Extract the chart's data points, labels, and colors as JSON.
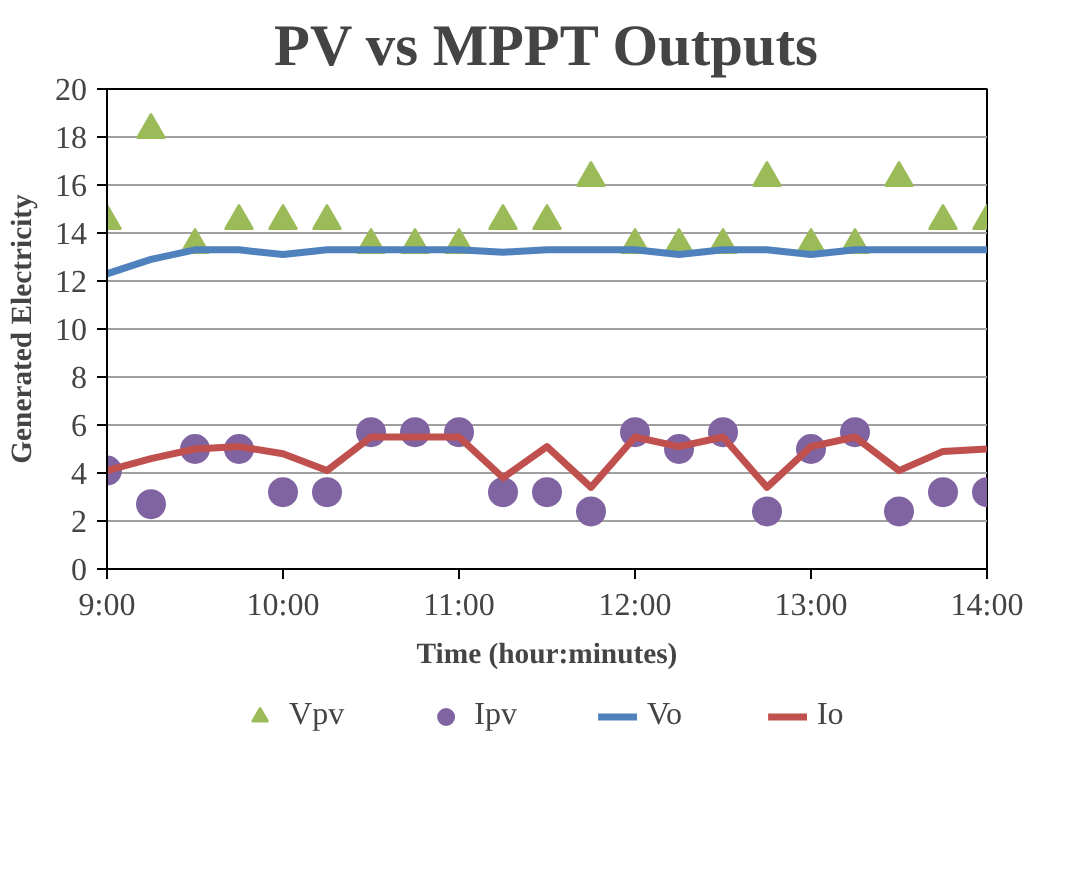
{
  "chart_data": {
    "type": "line",
    "title": "PV vs MPPT Outputs",
    "xlabel": "Time (hour:minutes)",
    "ylabel": "Generated Electricity",
    "x": [
      9,
      9.25,
      9.5,
      9.75,
      10,
      10.25,
      10.5,
      10.75,
      11,
      11.25,
      11.5,
      11.75,
      12,
      12.25,
      12.5,
      12.75,
      13,
      13.25,
      13.5,
      13.75,
      14
    ],
    "xlim": [
      9,
      14
    ],
    "xticks": [
      {
        "value": 9,
        "label": "9:00"
      },
      {
        "value": 10,
        "label": "10:00"
      },
      {
        "value": 11,
        "label": "11:00"
      },
      {
        "value": 12,
        "label": "12:00"
      },
      {
        "value": 13,
        "label": "13:00"
      },
      {
        "value": 14,
        "label": "14:00"
      }
    ],
    "ylim": [
      0,
      20
    ],
    "yticks": [
      0,
      2,
      4,
      6,
      8,
      10,
      12,
      14,
      16,
      18,
      20
    ],
    "grid": "y",
    "legend": "bottom",
    "series": [
      {
        "name": "Vpv",
        "type": "scatter",
        "marker": "triangle",
        "color": "#9bbb59",
        "values": [
          14.5,
          18.3,
          13.5,
          14.5,
          14.5,
          14.5,
          13.5,
          13.5,
          13.5,
          14.5,
          14.5,
          16.3,
          13.5,
          13.5,
          13.5,
          16.3,
          13.5,
          13.5,
          16.3,
          14.5,
          14.5
        ]
      },
      {
        "name": "Ipv",
        "type": "scatter",
        "marker": "circle",
        "color": "#8064a2",
        "values": [
          4.1,
          2.7,
          5.0,
          5.0,
          3.2,
          3.2,
          5.7,
          5.7,
          5.7,
          3.2,
          3.2,
          2.4,
          5.7,
          5.0,
          5.7,
          2.4,
          5.0,
          5.7,
          2.4,
          3.2,
          3.2
        ]
      },
      {
        "name": "Vo",
        "color": "#4f81bd",
        "values": [
          12.3,
          12.9,
          13.3,
          13.3,
          13.1,
          13.3,
          13.3,
          13.3,
          13.3,
          13.2,
          13.3,
          13.3,
          13.3,
          13.1,
          13.3,
          13.3,
          13.1,
          13.3,
          13.3,
          13.3,
          13.3
        ]
      },
      {
        "name": "Io",
        "color": "#c0504d",
        "values": [
          4.1,
          4.6,
          5.0,
          5.1,
          4.8,
          4.1,
          5.5,
          5.5,
          5.5,
          3.8,
          5.1,
          3.4,
          5.5,
          5.1,
          5.5,
          3.4,
          5.1,
          5.5,
          4.1,
          4.9,
          5.0
        ]
      }
    ]
  }
}
